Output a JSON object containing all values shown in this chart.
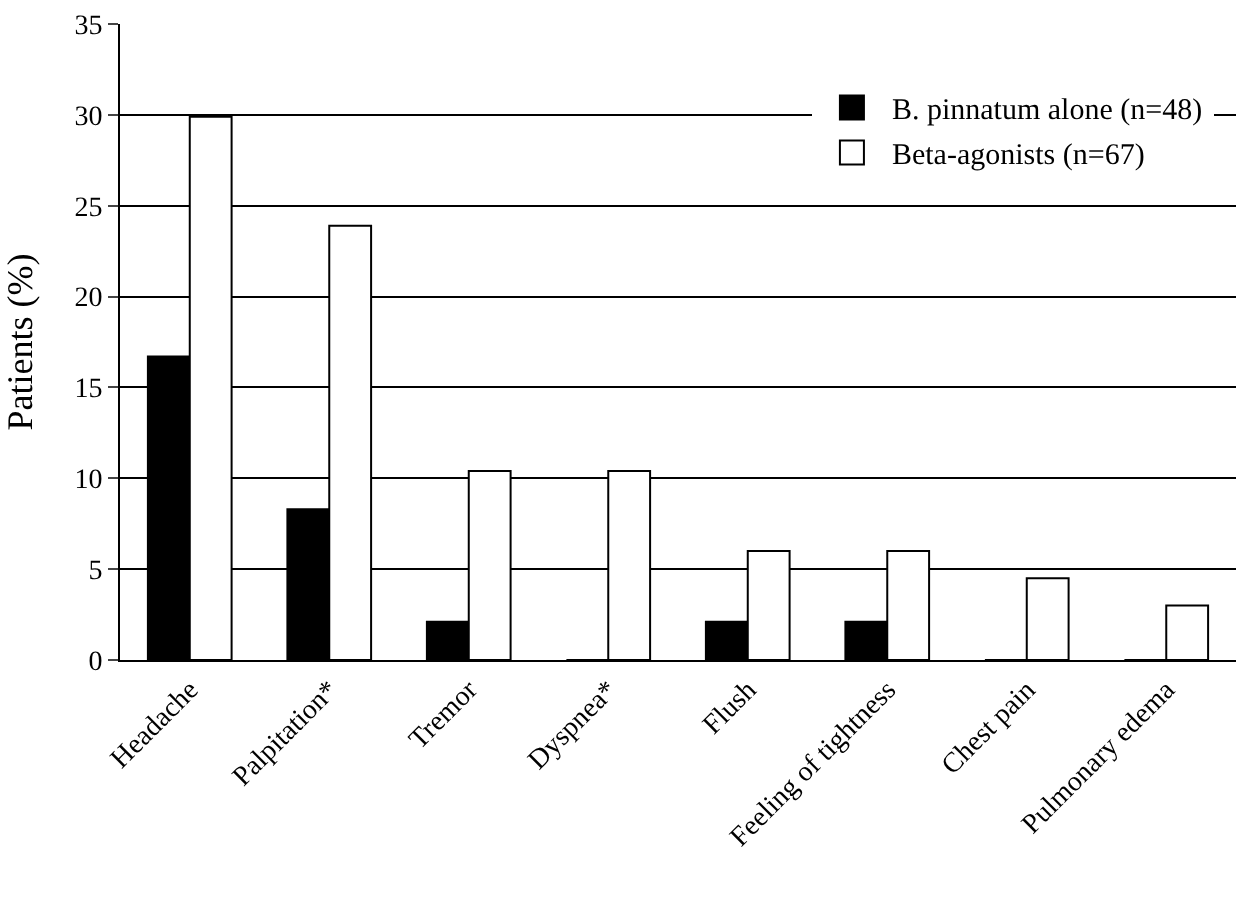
{
  "chart_data": {
    "type": "bar",
    "ylabel": "Patients (%)",
    "categories": [
      "Headache",
      "Palpitation*",
      "Tremor",
      "Dyspnea*",
      "Flush",
      "Feeling of tightness",
      "Chest pain",
      "Pulmonary edema"
    ],
    "series": [
      {
        "name": "B. pinnatum alone (n=48)",
        "color": "#000000",
        "values": [
          16.7,
          8.3,
          2.1,
          0,
          2.1,
          2.1,
          0,
          0
        ]
      },
      {
        "name": "Beta-agonists (n=67)",
        "color": "#ffffff",
        "values": [
          29.9,
          23.9,
          10.4,
          10.4,
          6.0,
          6.0,
          4.5,
          3.0
        ]
      }
    ],
    "ylim": [
      0,
      35
    ],
    "yticks": [
      0,
      5,
      10,
      15,
      20,
      25,
      30,
      35
    ],
    "grid": "y",
    "legend": "top right"
  }
}
